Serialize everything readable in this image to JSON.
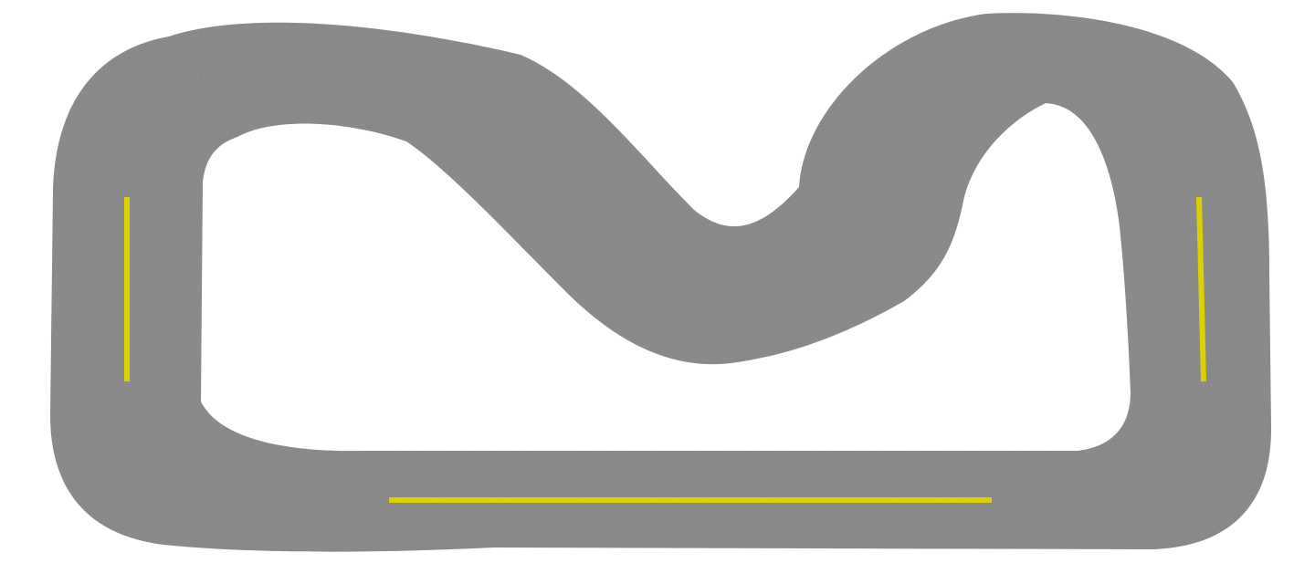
{
  "scene": {
    "background_color": "#ffffff",
    "track_color": "#808080",
    "marker_color": "#dcd000",
    "track_texture": "asphalt-noise",
    "marker_count": 3
  }
}
